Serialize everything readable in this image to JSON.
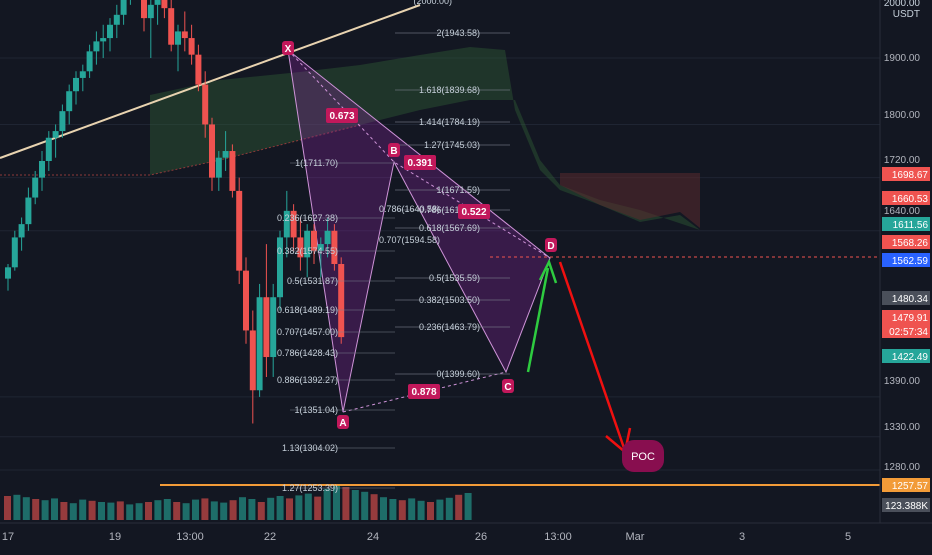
{
  "header": {
    "currency_line1": "2000.00",
    "currency_line2": "USDT"
  },
  "colors": {
    "background": "#131722",
    "up": "#26a69a",
    "down": "#ef5350",
    "pattern_fill": "#9c27b0",
    "pattern_line": "#ce93d8",
    "fib_label": "#c6d0da",
    "trend_line": "#e8d3b0",
    "projection_up": "#2ecc40",
    "projection_down": "#f01010",
    "cloud": "#2e5a36",
    "cloud_red": "#5a2a2e",
    "poc_line": "#f29b38",
    "point_label": "#c2185b"
  },
  "chart_data": {
    "type": "candlestick",
    "y_axis": {
      "ticks": [
        "1900.00",
        "1800.00",
        "1720.00",
        "1640.00",
        "1390.00",
        "1330.00",
        "1280.00"
      ],
      "price_badges": [
        {
          "text": "1698.67",
          "color": "#ef5350"
        },
        {
          "text": "1660.53",
          "color": "#ef5350"
        },
        {
          "text": "1611.56",
          "color": "#26a69a"
        },
        {
          "text": "1568.26",
          "color": "#ef5350"
        },
        {
          "text": "1562.59",
          "color": "#2962ff"
        },
        {
          "text": "1480.34",
          "color": "#4a4f5a"
        },
        {
          "text": "1479.91",
          "color": "#ef5350"
        },
        {
          "text": "02:57:34",
          "color": "#ef5350"
        },
        {
          "text": "1422.49",
          "color": "#26a69a"
        },
        {
          "text": "1257.57",
          "color": "#f29b38"
        },
        {
          "text": "123.388K",
          "color": "#4a4f5a"
        }
      ]
    },
    "x_axis": {
      "ticks": [
        "17",
        "19",
        "13:00",
        "22",
        "24",
        "26",
        "13:00",
        "Mar",
        "3",
        "5"
      ]
    },
    "fib_right": [
      "2(1943.58)",
      "1.618(1839.68)",
      "1.414(1784.19)",
      "1.27(1745.03)",
      "1(1671.59)",
      "0.786(1613.37)",
      "0.618(1567.69)",
      "0.5(1535.59)",
      "0.382(1503.50)",
      "0.236(1463.79)",
      "0(1399.60)"
    ],
    "fib_left": [
      "1(1711.70)",
      "0.236(1627.38)",
      "0.382(1574.55)",
      "0.5(1531.87)",
      "0.618(1489.19)",
      "0.707(1457.00)",
      "0.786(1428.43)",
      "0.886(1392.27)",
      "1(1351.04)",
      "1.13(1304.02)",
      "1.27(1253.39)"
    ],
    "fib_middle": [
      "0.786(1640.58)",
      "0.707(1594.58)"
    ],
    "fib_top_partial": "(2000.00)",
    "harmonic_points": [
      "X",
      "A",
      "B",
      "C",
      "D"
    ],
    "harmonic_ratios": [
      "0.673",
      "0.391",
      "0.522",
      "0.878"
    ],
    "poc_label": "POC",
    "candles": [
      [
        1568,
        1590,
        1550,
        1585
      ],
      [
        1585,
        1640,
        1580,
        1630
      ],
      [
        1630,
        1660,
        1610,
        1650
      ],
      [
        1650,
        1705,
        1640,
        1690
      ],
      [
        1690,
        1730,
        1680,
        1720
      ],
      [
        1720,
        1760,
        1700,
        1745
      ],
      [
        1745,
        1790,
        1730,
        1780
      ],
      [
        1780,
        1800,
        1750,
        1790
      ],
      [
        1790,
        1830,
        1780,
        1820
      ],
      [
        1820,
        1860,
        1800,
        1850
      ],
      [
        1850,
        1880,
        1830,
        1870
      ],
      [
        1870,
        1890,
        1850,
        1880
      ],
      [
        1880,
        1920,
        1870,
        1910
      ],
      [
        1910,
        1940,
        1890,
        1925
      ],
      [
        1925,
        1950,
        1900,
        1930
      ],
      [
        1930,
        1960,
        1910,
        1950
      ],
      [
        1950,
        1980,
        1930,
        1965
      ],
      [
        1965,
        2010,
        1950,
        1995
      ],
      [
        1995,
        2040,
        1980,
        2020
      ],
      [
        2020,
        2060,
        1990,
        2040
      ],
      [
        2040,
        2060,
        1940,
        1960
      ],
      [
        1960,
        1990,
        1900,
        1980
      ],
      [
        1980,
        2020,
        1950,
        2000
      ],
      [
        2000,
        2030,
        1960,
        1975
      ],
      [
        1975,
        2000,
        1910,
        1920
      ],
      [
        1920,
        1950,
        1880,
        1940
      ],
      [
        1940,
        1970,
        1910,
        1930
      ],
      [
        1930,
        1950,
        1890,
        1905
      ],
      [
        1905,
        1920,
        1850,
        1860
      ],
      [
        1860,
        1880,
        1780,
        1800
      ],
      [
        1800,
        1810,
        1700,
        1720
      ],
      [
        1720,
        1760,
        1700,
        1750
      ],
      [
        1750,
        1790,
        1730,
        1760
      ],
      [
        1760,
        1770,
        1690,
        1700
      ],
      [
        1700,
        1720,
        1560,
        1580
      ],
      [
        1580,
        1600,
        1470,
        1490
      ],
      [
        1490,
        1520,
        1350,
        1400
      ],
      [
        1400,
        1560,
        1390,
        1540
      ],
      [
        1540,
        1620,
        1420,
        1450
      ],
      [
        1450,
        1560,
        1420,
        1540
      ],
      [
        1540,
        1640,
        1520,
        1630
      ],
      [
        1630,
        1700,
        1600,
        1670
      ],
      [
        1670,
        1680,
        1610,
        1630
      ],
      [
        1630,
        1660,
        1580,
        1600
      ],
      [
        1600,
        1650,
        1570,
        1640
      ],
      [
        1640,
        1650,
        1590,
        1610
      ],
      [
        1610,
        1630,
        1570,
        1620
      ],
      [
        1620,
        1660,
        1600,
        1640
      ],
      [
        1640,
        1650,
        1580,
        1590
      ],
      [
        1590,
        1600,
        1470,
        1480
      ]
    ],
    "volumes": [
      40,
      42,
      38,
      35,
      33,
      36,
      30,
      28,
      34,
      32,
      30,
      29,
      31,
      26,
      28,
      30,
      33,
      35,
      30,
      28,
      34,
      36,
      31,
      29,
      33,
      38,
      35,
      30,
      37,
      40,
      36,
      41,
      44,
      39,
      52,
      58,
      55,
      50,
      47,
      43,
      38,
      35,
      33,
      36,
      32,
      30,
      34,
      37,
      42,
      45
    ]
  }
}
